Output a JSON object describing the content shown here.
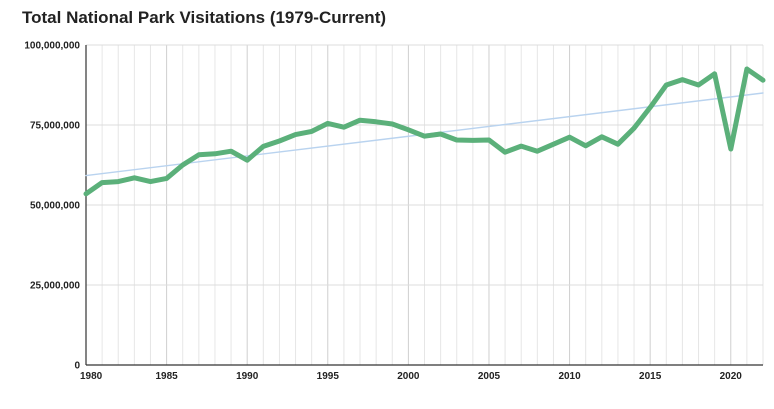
{
  "chart_data": {
    "type": "line",
    "title": "Total National Park Visitations (1979-Current)",
    "xlabel": "",
    "ylabel": "",
    "xlim": [
      1980,
      2022
    ],
    "ylim": [
      0,
      100000000
    ],
    "y_ticks": [
      0,
      25000000,
      50000000,
      75000000,
      100000000
    ],
    "y_tick_labels": [
      "0",
      "25,000,000",
      "50,000,000",
      "75,000,000",
      "100,000,000"
    ],
    "x_ticks": [
      1980,
      1985,
      1990,
      1995,
      2000,
      2005,
      2010,
      2015,
      2020
    ],
    "x_tick_labels": [
      "1980",
      "1985",
      "1990",
      "1995",
      "2000",
      "2005",
      "2010",
      "2015",
      "2020"
    ],
    "grid": true,
    "legend": "none",
    "series": [
      {
        "color": "#5bb07a",
        "x": [
          1980,
          1981,
          1982,
          1983,
          1984,
          1985,
          1986,
          1987,
          1988,
          1989,
          1990,
          1991,
          1992,
          1993,
          1994,
          1995,
          1996,
          1997,
          1998,
          1999,
          2000,
          2001,
          2002,
          2003,
          2004,
          2005,
          2006,
          2007,
          2008,
          2009,
          2010,
          2011,
          2012,
          2013,
          2014,
          2015,
          2016,
          2017,
          2018,
          2019,
          2020,
          2021,
          2022
        ],
        "values": [
          53500000,
          57000000,
          57300000,
          58500000,
          57300000,
          58300000,
          62500000,
          65700000,
          66000000,
          66800000,
          64000000,
          68300000,
          70000000,
          72000000,
          73000000,
          75500000,
          74300000,
          76500000,
          76000000,
          75300000,
          73500000,
          71500000,
          72200000,
          70300000,
          70200000,
          70300000,
          66500000,
          68400000,
          66800000,
          69000000,
          71200000,
          68500000,
          71300000,
          69000000,
          74000000,
          80500000,
          87500000,
          89200000,
          87500000,
          91000000,
          67500000,
          92500000,
          89000000
        ]
      },
      {
        "color": "#b9d3ef",
        "x": [
          1980,
          2022
        ],
        "values": [
          59200000,
          85000000
        ]
      }
    ]
  }
}
